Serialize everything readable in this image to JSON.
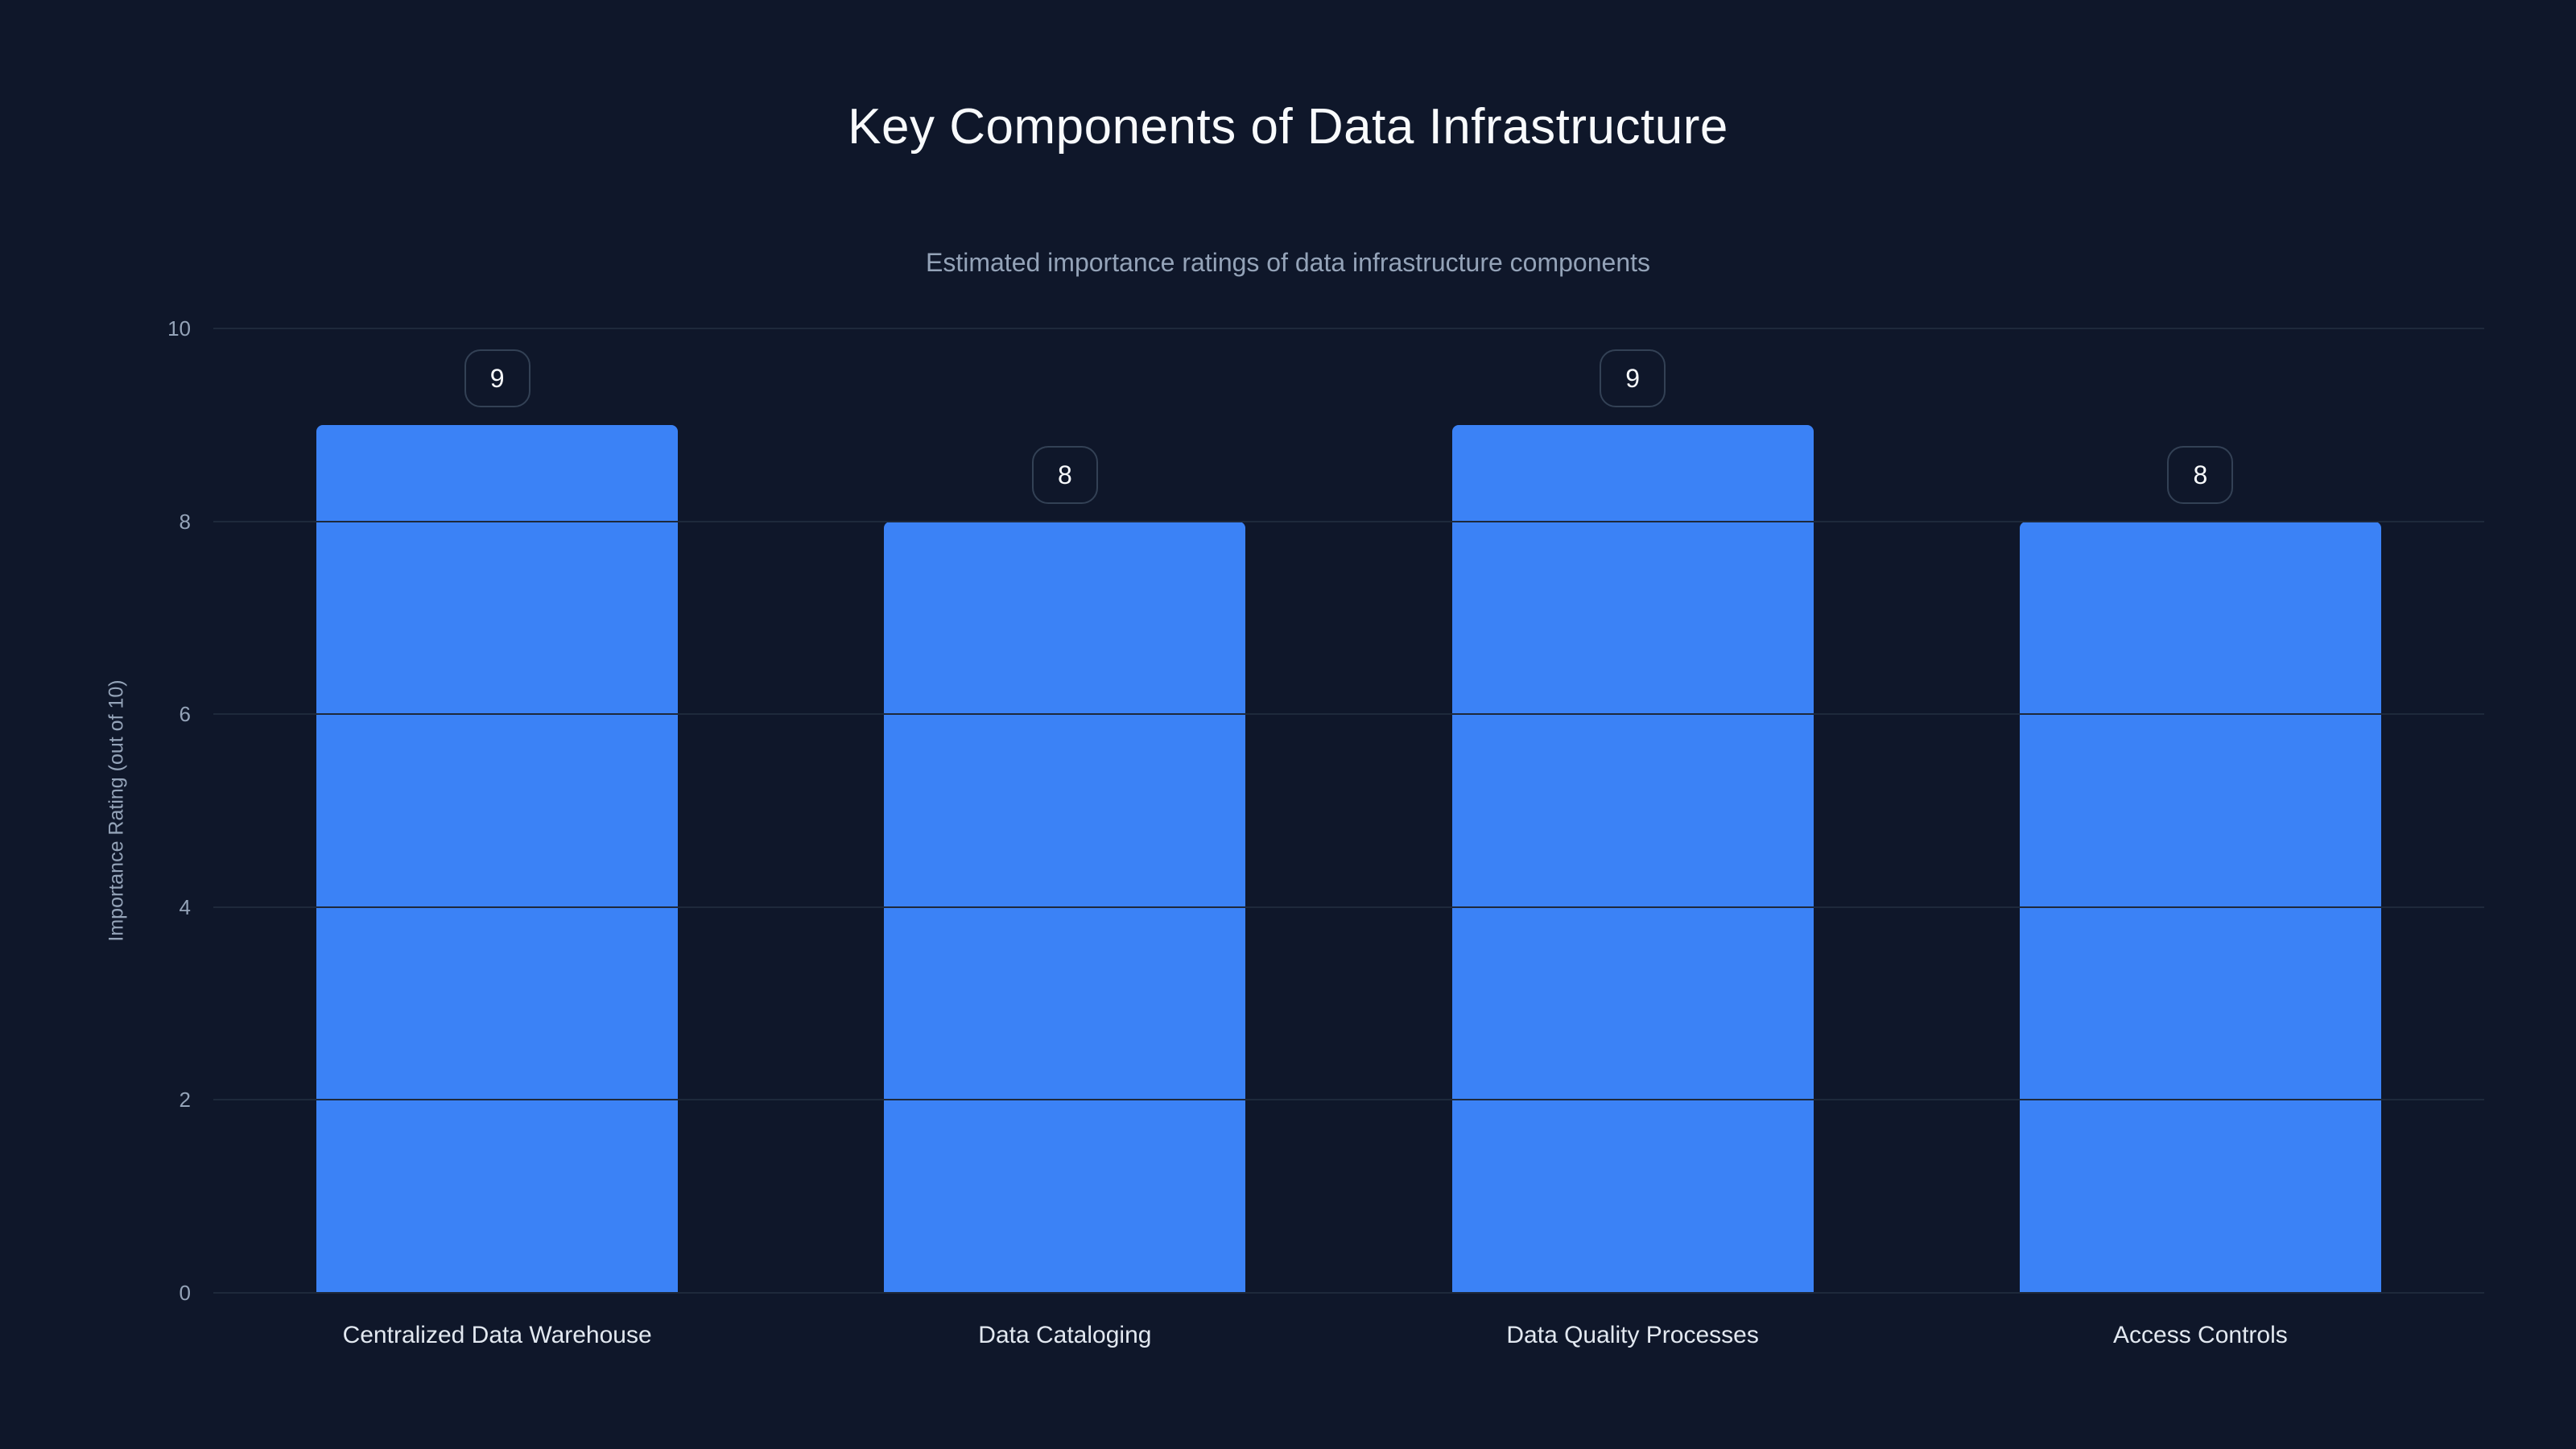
{
  "chart_data": {
    "type": "bar",
    "title": "Key Components of Data Infrastructure",
    "subtitle": "Estimated importance ratings of data infrastructure components",
    "categories": [
      "Centralized Data Warehouse",
      "Data Cataloging",
      "Data Quality Processes",
      "Access Controls"
    ],
    "values": [
      9,
      8,
      9,
      8
    ],
    "xlabel": "",
    "ylabel": "Importance Rating (out of 10)",
    "ylim": [
      0,
      10
    ],
    "yticks": [
      0,
      2,
      4,
      6,
      8,
      10
    ],
    "grid": true,
    "legend": false,
    "value_labels_shown": true,
    "colors": {
      "background": "#0f172a",
      "bar": "#3b82f6",
      "grid": "#1e293b",
      "title": "#f8fafc",
      "subtitle": "#94a3b8",
      "tick": "#94a3b8",
      "category_label": "#e2e8f0",
      "badge_border": "#334155",
      "badge_text": "#f8fafc"
    }
  }
}
